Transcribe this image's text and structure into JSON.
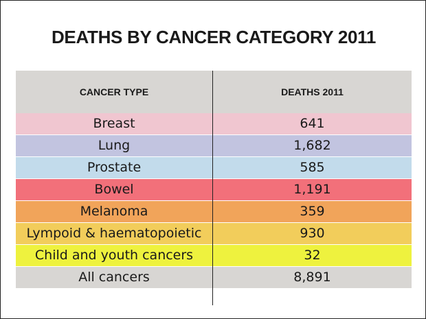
{
  "chart_data": {
    "type": "table",
    "title": "DEATHS BY CANCER CATEGORY 2011",
    "columns": [
      "CANCER TYPE",
      "DEATHS 2011"
    ],
    "rows": [
      {
        "type": "Breast",
        "deaths": "641",
        "color": "#f0c6d0"
      },
      {
        "type": "Lung",
        "deaths": "1,682",
        "color": "#c2c4e0"
      },
      {
        "type": "Prostate",
        "deaths": "585",
        "color": "#c2dbeb"
      },
      {
        "type": "Bowel",
        "deaths": "1,191",
        "color": "#f2707a"
      },
      {
        "type": "Melanoma",
        "deaths": "359",
        "color": "#f1a45a"
      },
      {
        "type": "Lympoid & haematopoietic",
        "deaths": "930",
        "color": "#f2cd5b"
      },
      {
        "type": "Child and youth cancers",
        "deaths": "32",
        "color": "#eef23e"
      },
      {
        "type": "All cancers",
        "deaths": "8,891",
        "color": "#d8d6d3"
      }
    ]
  }
}
